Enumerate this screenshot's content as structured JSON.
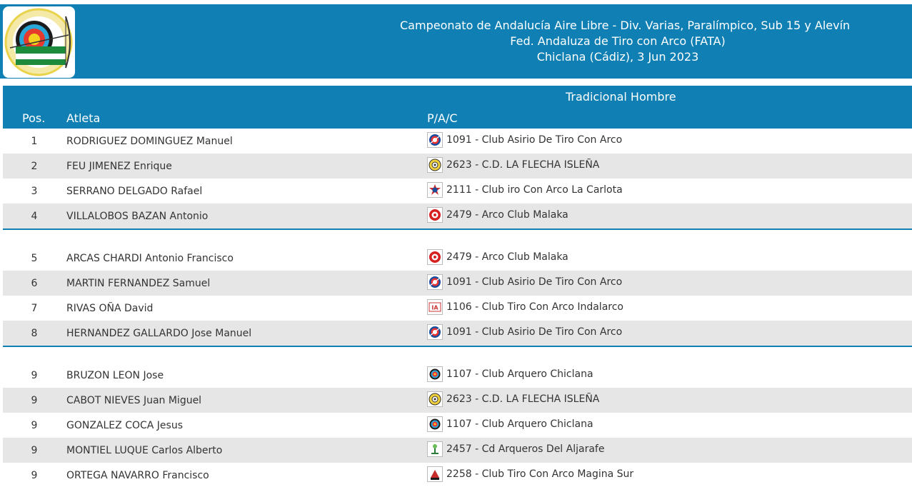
{
  "header": {
    "title_line1": "Campeonato de Andalucía Aire Libre - Div. Varias, Paralímpico, Sub 15 y Alevín",
    "title_line2": "Fed. Andaluza de Tiro con Arco (FATA)",
    "title_line3": "Chiclana (Cádiz), 3 Jun 2023",
    "logo_icon": "fata-logo-icon",
    "logo_text": "FEDERACIÓN ANDALUZA DE TIRO CON ARCO"
  },
  "table": {
    "category": "Tradicional Hombre",
    "col_pos": "Pos.",
    "col_athlete": "Atleta",
    "col_club": "P/A/C"
  },
  "groups": [
    [
      {
        "pos": "1",
        "name": "RODRIGUEZ DOMINGUEZ Manuel",
        "club": "1091 - Club Asirio De Tiro Con Arco",
        "icon": "asirio"
      },
      {
        "pos": "2",
        "name": "FEU JIMENEZ Enrique",
        "club": "2623 - C.D. LA FLECHA ISLEÑA",
        "icon": "flecha"
      },
      {
        "pos": "3",
        "name": "SERRANO DELGADO Rafael",
        "club": "2111 - Club iro Con Arco La Carlota",
        "icon": "carlota"
      },
      {
        "pos": "4",
        "name": "VILLALOBOS BAZAN Antonio",
        "club": "2479 - Arco Club Malaka",
        "icon": "malaka"
      }
    ],
    [
      {
        "pos": "5",
        "name": "ARCAS CHARDI Antonio Francisco",
        "club": "2479 - Arco Club Malaka",
        "icon": "malaka"
      },
      {
        "pos": "6",
        "name": "MARTIN FERNANDEZ Samuel",
        "club": "1091 - Club Asirio De Tiro Con Arco",
        "icon": "asirio"
      },
      {
        "pos": "7",
        "name": "RIVAS OÑA David",
        "club": "1106 - Club Tiro Con Arco Indalarco",
        "icon": "indalarco"
      },
      {
        "pos": "8",
        "name": "HERNANDEZ GALLARDO Jose Manuel",
        "club": "1091 - Club Asirio De Tiro Con Arco",
        "icon": "asirio"
      }
    ],
    [
      {
        "pos": "9",
        "name": "BRUZON LEON Jose",
        "club": "1107 - Club Arquero Chiclana",
        "icon": "chiclana"
      },
      {
        "pos": "9",
        "name": "CABOT NIEVES Juan Miguel",
        "club": "2623 - C.D. LA FLECHA ISLEÑA",
        "icon": "flecha"
      },
      {
        "pos": "9",
        "name": "GONZALEZ COCA Jesus",
        "club": "1107 - Club Arquero Chiclana",
        "icon": "chiclana"
      },
      {
        "pos": "9",
        "name": "MONTIEL LUQUE Carlos Alberto",
        "club": "2457 - Cd Arqueros Del Aljarafe",
        "icon": "aljarafe"
      },
      {
        "pos": "9",
        "name": "ORTEGA NAVARRO Francisco",
        "club": "2258 - Club Tiro Con Arco Magina Sur",
        "icon": "magina"
      }
    ]
  ],
  "colors": {
    "header_bg": "#0f7fb4",
    "row_alt_bg": "#e6e6e6",
    "text": "#333333"
  }
}
